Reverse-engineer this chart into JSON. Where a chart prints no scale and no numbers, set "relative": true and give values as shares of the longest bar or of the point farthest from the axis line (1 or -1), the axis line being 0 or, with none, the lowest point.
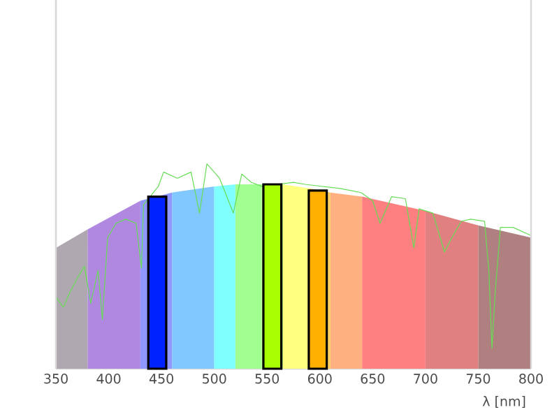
{
  "chart_data": {
    "type": "area",
    "relative": true,
    "xlabel": "λ [nm]",
    "xlim": [
      350,
      800
    ],
    "xticks": [
      350,
      400,
      450,
      500,
      550,
      600,
      650,
      700,
      750,
      800
    ],
    "tick_labels": "x",
    "series": [
      {
        "color": "#b0a8b0",
        "x": [
          350,
          380
        ],
        "values": [
          0.59,
          0.68
        ]
      },
      {
        "color": "#b088e0",
        "x": [
          380,
          430
        ],
        "values": [
          0.68,
          0.82
        ]
      },
      {
        "color": "#9098ff",
        "x": [
          430,
          460
        ],
        "values": [
          0.82,
          0.86
        ]
      },
      {
        "color": "#80c8ff",
        "x": [
          460,
          500
        ],
        "values": [
          0.86,
          0.89
        ]
      },
      {
        "color": "#80ffff",
        "x": [
          500,
          520
        ],
        "values": [
          0.89,
          0.9
        ]
      },
      {
        "color": "#a0ff90",
        "x": [
          520,
          545
        ],
        "values": [
          0.9,
          0.9
        ]
      },
      {
        "color": "#c0ff80",
        "x": [
          545,
          565
        ],
        "values": [
          0.9,
          0.9
        ]
      },
      {
        "color": "#ffff80",
        "x": [
          565,
          590
        ],
        "values": [
          0.9,
          0.88
        ]
      },
      {
        "color": "#ffd060",
        "x": [
          590,
          610
        ],
        "values": [
          0.88,
          0.86
        ]
      },
      {
        "color": "#ffb080",
        "x": [
          610,
          640
        ],
        "values": [
          0.86,
          0.84
        ]
      },
      {
        "color": "#ff8080",
        "x": [
          640,
          700
        ],
        "values": [
          0.84,
          0.77
        ]
      },
      {
        "color": "#e08080",
        "x": [
          700,
          750
        ],
        "values": [
          0.77,
          0.7
        ]
      },
      {
        "color": "#b08080",
        "x": [
          750,
          800
        ],
        "values": [
          0.7,
          0.64
        ]
      },
      {
        "type": "line",
        "color": "#66dd55",
        "x": [
          350,
          357,
          363,
          370,
          377,
          383,
          390,
          394,
          399,
          407,
          416,
          426,
          431,
          433,
          447,
          452,
          465,
          478,
          486,
          493,
          505,
          518,
          526,
          535,
          545,
          575,
          586,
          619,
          639,
          650,
          657,
          668,
          681,
          689,
          694,
          707,
          718,
          725,
          734,
          743,
          756,
          760,
          763,
          766,
          771,
          783,
          800
        ],
        "values": [
          0.35,
          0.3,
          0.37,
          0.44,
          0.5,
          0.32,
          0.48,
          0.24,
          0.64,
          0.71,
          0.73,
          0.71,
          0.49,
          0.8,
          0.89,
          0.96,
          0.93,
          0.96,
          0.76,
          1,
          0.93,
          0.76,
          0.95,
          0.91,
          0.89,
          0.91,
          0.9,
          0.88,
          0.86,
          0.82,
          0.71,
          0.84,
          0.83,
          0.59,
          0.78,
          0.76,
          0.57,
          0.64,
          0.72,
          0.73,
          0.72,
          0.48,
          0.1,
          0.37,
          0.69,
          0.69,
          0.65
        ]
      },
      {
        "type": "bar",
        "x": [
          446,
          555,
          598
        ],
        "values": [
          0.84,
          0.9,
          0.87
        ],
        "colors": [
          "#0022ff",
          "#a8ff00",
          "#ffb000"
        ]
      }
    ]
  }
}
